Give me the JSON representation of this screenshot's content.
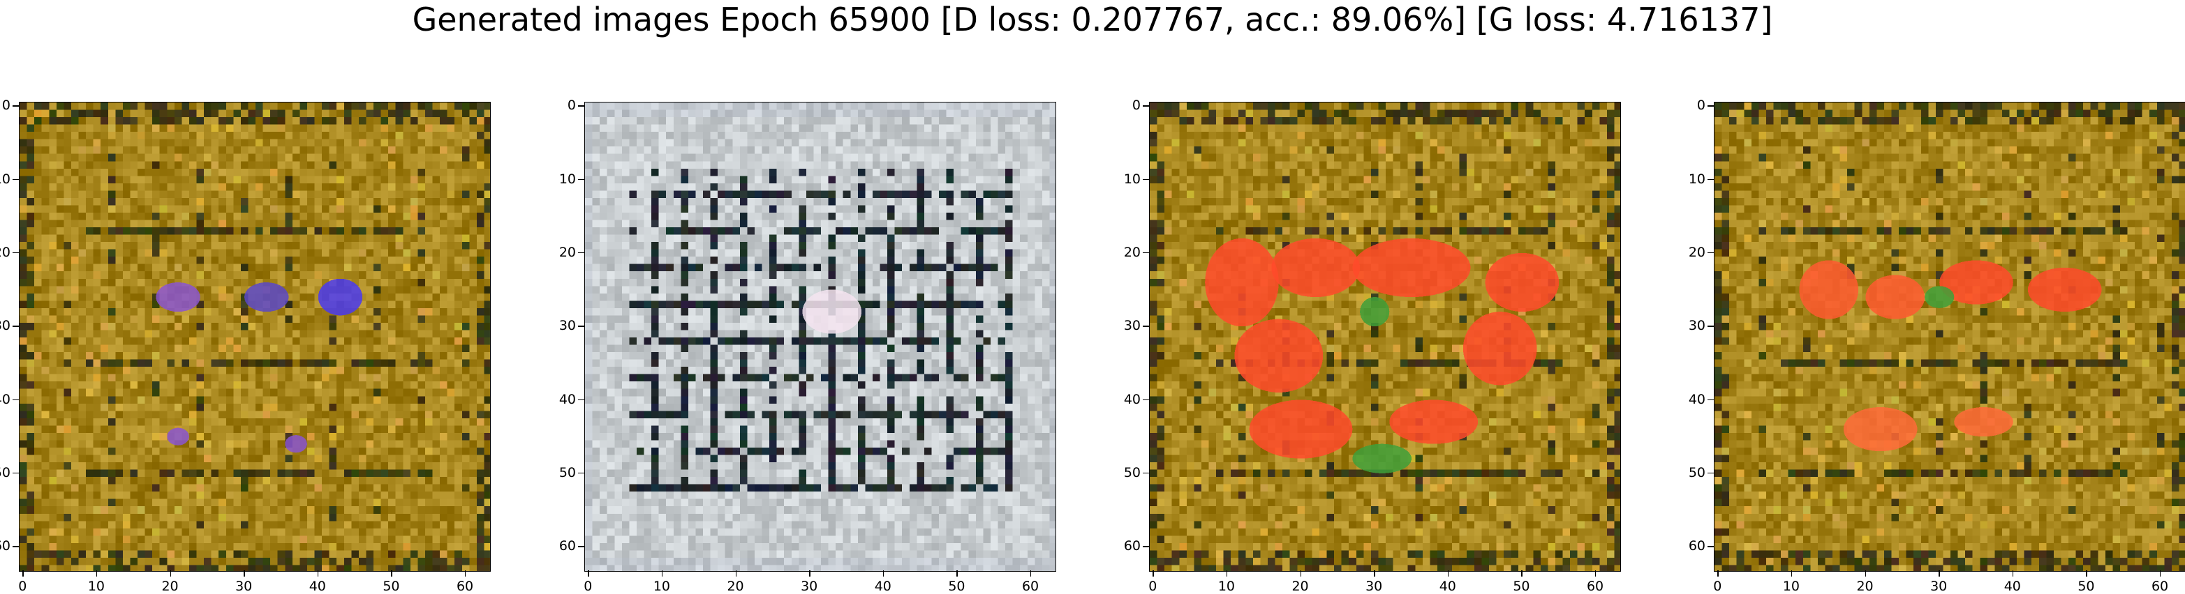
{
  "figure": {
    "title": "Generated images Epoch 65900 [D loss: 0.207767, acc.: 89.06%] [G loss: 4.716137]"
  },
  "panels": [
    {
      "name": "generated-image-1",
      "style": "olive",
      "blobs": [
        {
          "x": 21,
          "y": 26,
          "rx": 3,
          "ry": 2,
          "color": "#8a55d0"
        },
        {
          "x": 33,
          "y": 26,
          "rx": 3,
          "ry": 2,
          "color": "#5a48c8"
        },
        {
          "x": 43,
          "y": 26,
          "rx": 3,
          "ry": 2.5,
          "color": "#4a3af0"
        },
        {
          "x": 21,
          "y": 45,
          "rx": 1.5,
          "ry": 1.2,
          "color": "#8a55d0"
        },
        {
          "x": 37,
          "y": 46,
          "rx": 1.5,
          "ry": 1.2,
          "color": "#8a55d0"
        }
      ]
    },
    {
      "name": "generated-image-2",
      "style": "grid",
      "blobs": [
        {
          "x": 33,
          "y": 28,
          "rx": 4,
          "ry": 3,
          "color": "#f4e4f0"
        }
      ]
    },
    {
      "name": "generated-image-3",
      "style": "olive",
      "blobs": [
        {
          "x": 12,
          "y": 24,
          "rx": 5,
          "ry": 6,
          "color": "#ff4a2a"
        },
        {
          "x": 22,
          "y": 22,
          "rx": 6,
          "ry": 4,
          "color": "#ff4a2a"
        },
        {
          "x": 35,
          "y": 22,
          "rx": 8,
          "ry": 4,
          "color": "#ff4a2a"
        },
        {
          "x": 50,
          "y": 24,
          "rx": 5,
          "ry": 4,
          "color": "#ff4a2a"
        },
        {
          "x": 17,
          "y": 34,
          "rx": 6,
          "ry": 5,
          "color": "#ff4a2a"
        },
        {
          "x": 47,
          "y": 33,
          "rx": 5,
          "ry": 5,
          "color": "#ff4a2a"
        },
        {
          "x": 20,
          "y": 44,
          "rx": 7,
          "ry": 4,
          "color": "#ff4a2a"
        },
        {
          "x": 38,
          "y": 43,
          "rx": 6,
          "ry": 3,
          "color": "#ff4a2a"
        },
        {
          "x": 31,
          "y": 48,
          "rx": 4,
          "ry": 2,
          "color": "#3fa03a"
        },
        {
          "x": 30,
          "y": 28,
          "rx": 2,
          "ry": 2,
          "color": "#3fa03a"
        }
      ]
    },
    {
      "name": "generated-image-4",
      "style": "olive",
      "blobs": [
        {
          "x": 15,
          "y": 25,
          "rx": 4,
          "ry": 4,
          "color": "#ff5a30"
        },
        {
          "x": 24,
          "y": 26,
          "rx": 4,
          "ry": 3,
          "color": "#ff5a30"
        },
        {
          "x": 35,
          "y": 24,
          "rx": 5,
          "ry": 3,
          "color": "#ff4a2a"
        },
        {
          "x": 47,
          "y": 25,
          "rx": 5,
          "ry": 3,
          "color": "#ff4a2a"
        },
        {
          "x": 30,
          "y": 26,
          "rx": 2,
          "ry": 1.5,
          "color": "#3fa03a"
        },
        {
          "x": 22,
          "y": 44,
          "rx": 5,
          "ry": 3,
          "color": "#ff6a38"
        },
        {
          "x": 36,
          "y": 43,
          "rx": 4,
          "ry": 2,
          "color": "#ff6a38"
        }
      ]
    }
  ],
  "axes": {
    "x_ticks": [
      "0",
      "10",
      "20",
      "30",
      "40",
      "50",
      "60"
    ],
    "y_ticks": [
      "0",
      "10",
      "20",
      "30",
      "40",
      "50",
      "60"
    ],
    "grid_size": 64
  },
  "colors": {
    "olive_base": "#a6851c",
    "olive_dark": "#3e3a14",
    "olive_light": "#d0a83a",
    "grid_base": "#c8cdd0",
    "grid_dark": "#1f2a30"
  }
}
